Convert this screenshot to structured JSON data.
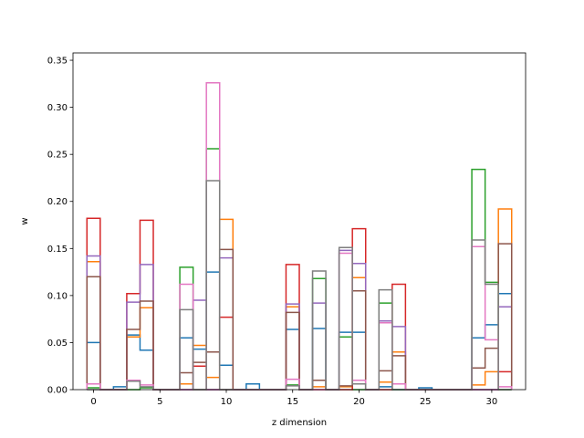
{
  "chart_data": {
    "type": "bar",
    "style": "step-histogram",
    "xlabel": "z dimension",
    "ylabel": "w",
    "xlim": [
      -1.55,
      32.55
    ],
    "ylim": [
      0,
      0.3578
    ],
    "xticks": [
      0,
      5,
      10,
      15,
      20,
      25,
      30
    ],
    "yticks": [
      0.0,
      0.05,
      0.1,
      0.15,
      0.2,
      0.25,
      0.3,
      0.35
    ],
    "grid": false,
    "legend": "none",
    "colors": [
      "#1f77b4",
      "#ff7f0e",
      "#2ca02c",
      "#d62728",
      "#9467bd",
      "#8c564b",
      "#e377c2",
      "#7f7f7f"
    ],
    "series": [
      {
        "values": [
          0.05,
          0.0,
          0.003,
          0.058,
          0.042,
          0.0,
          0.0,
          0.055,
          0.043,
          0.125,
          0.026,
          0.0,
          0.006,
          0.0,
          0.0,
          0.064,
          0.0,
          0.065,
          0.0,
          0.061,
          0.061,
          0.0,
          0.003,
          0.0,
          0.0,
          0.002,
          0.0,
          0.0,
          0.0,
          0.055,
          0.069,
          0.102
        ]
      },
      {
        "values": [
          0.136,
          0.0,
          0.0,
          0.056,
          0.087,
          0.0,
          0.0,
          0.006,
          0.047,
          0.013,
          0.181,
          0.0,
          0.0,
          0.0,
          0.0,
          0.088,
          0.0,
          0.003,
          0.0,
          0.003,
          0.119,
          0.0,
          0.008,
          0.04,
          0.0,
          0.0,
          0.0,
          0.0,
          0.0,
          0.005,
          0.019,
          0.192
        ]
      },
      {
        "values": [
          0.002,
          0.0,
          0.0,
          0.0,
          0.002,
          0.0,
          0.0,
          0.13,
          0.0,
          0.256,
          0.0,
          0.0,
          0.0,
          0.0,
          0.0,
          0.005,
          0.0,
          0.118,
          0.0,
          0.056,
          0.0,
          0.0,
          0.092,
          0.0,
          0.0,
          0.0,
          0.0,
          0.0,
          0.0,
          0.234,
          0.114,
          0.0
        ]
      },
      {
        "values": [
          0.182,
          0.0,
          0.0,
          0.102,
          0.18,
          0.0,
          0.0,
          0.0,
          0.025,
          0.0,
          0.077,
          0.0,
          0.0,
          0.0,
          0.0,
          0.133,
          0.0,
          0.0,
          0.0,
          0.0,
          0.171,
          0.0,
          0.0,
          0.112,
          0.0,
          0.0,
          0.0,
          0.0,
          0.0,
          0.0,
          0.0,
          0.019
        ]
      },
      {
        "values": [
          0.142,
          0.0,
          0.0,
          0.093,
          0.133,
          0.0,
          0.0,
          0.0,
          0.095,
          0.0,
          0.14,
          0.0,
          0.0,
          0.0,
          0.0,
          0.091,
          0.0,
          0.092,
          0.0,
          0.148,
          0.134,
          0.0,
          0.073,
          0.067,
          0.0,
          0.0,
          0.0,
          0.0,
          0.0,
          0.0,
          0.0,
          0.088
        ]
      },
      {
        "values": [
          0.12,
          0.0,
          0.0,
          0.064,
          0.094,
          0.0,
          0.0,
          0.018,
          0.029,
          0.04,
          0.149,
          0.0,
          0.0,
          0.0,
          0.0,
          0.082,
          0.0,
          0.01,
          0.0,
          0.004,
          0.105,
          0.0,
          0.02,
          0.036,
          0.0,
          0.0,
          0.0,
          0.0,
          0.0,
          0.023,
          0.044,
          0.155
        ]
      },
      {
        "values": [
          0.006,
          0.0,
          0.0,
          0.01,
          0.005,
          0.0,
          0.0,
          0.112,
          0.0,
          0.326,
          0.0,
          0.0,
          0.0,
          0.0,
          0.0,
          0.011,
          0.0,
          0.0,
          0.0,
          0.145,
          0.01,
          0.0,
          0.071,
          0.006,
          0.0,
          0.0,
          0.0,
          0.0,
          0.0,
          0.152,
          0.053,
          0.003
        ]
      },
      {
        "values": [
          0.0,
          0.0,
          0.0,
          0.009,
          0.003,
          0.0,
          0.0,
          0.085,
          0.0,
          0.222,
          0.0,
          0.0,
          0.0,
          0.0,
          0.0,
          0.004,
          0.0,
          0.126,
          0.0,
          0.151,
          0.006,
          0.0,
          0.106,
          0.0,
          0.0,
          0.0,
          0.0,
          0.0,
          0.0,
          0.159,
          0.112,
          0.0
        ]
      }
    ]
  }
}
